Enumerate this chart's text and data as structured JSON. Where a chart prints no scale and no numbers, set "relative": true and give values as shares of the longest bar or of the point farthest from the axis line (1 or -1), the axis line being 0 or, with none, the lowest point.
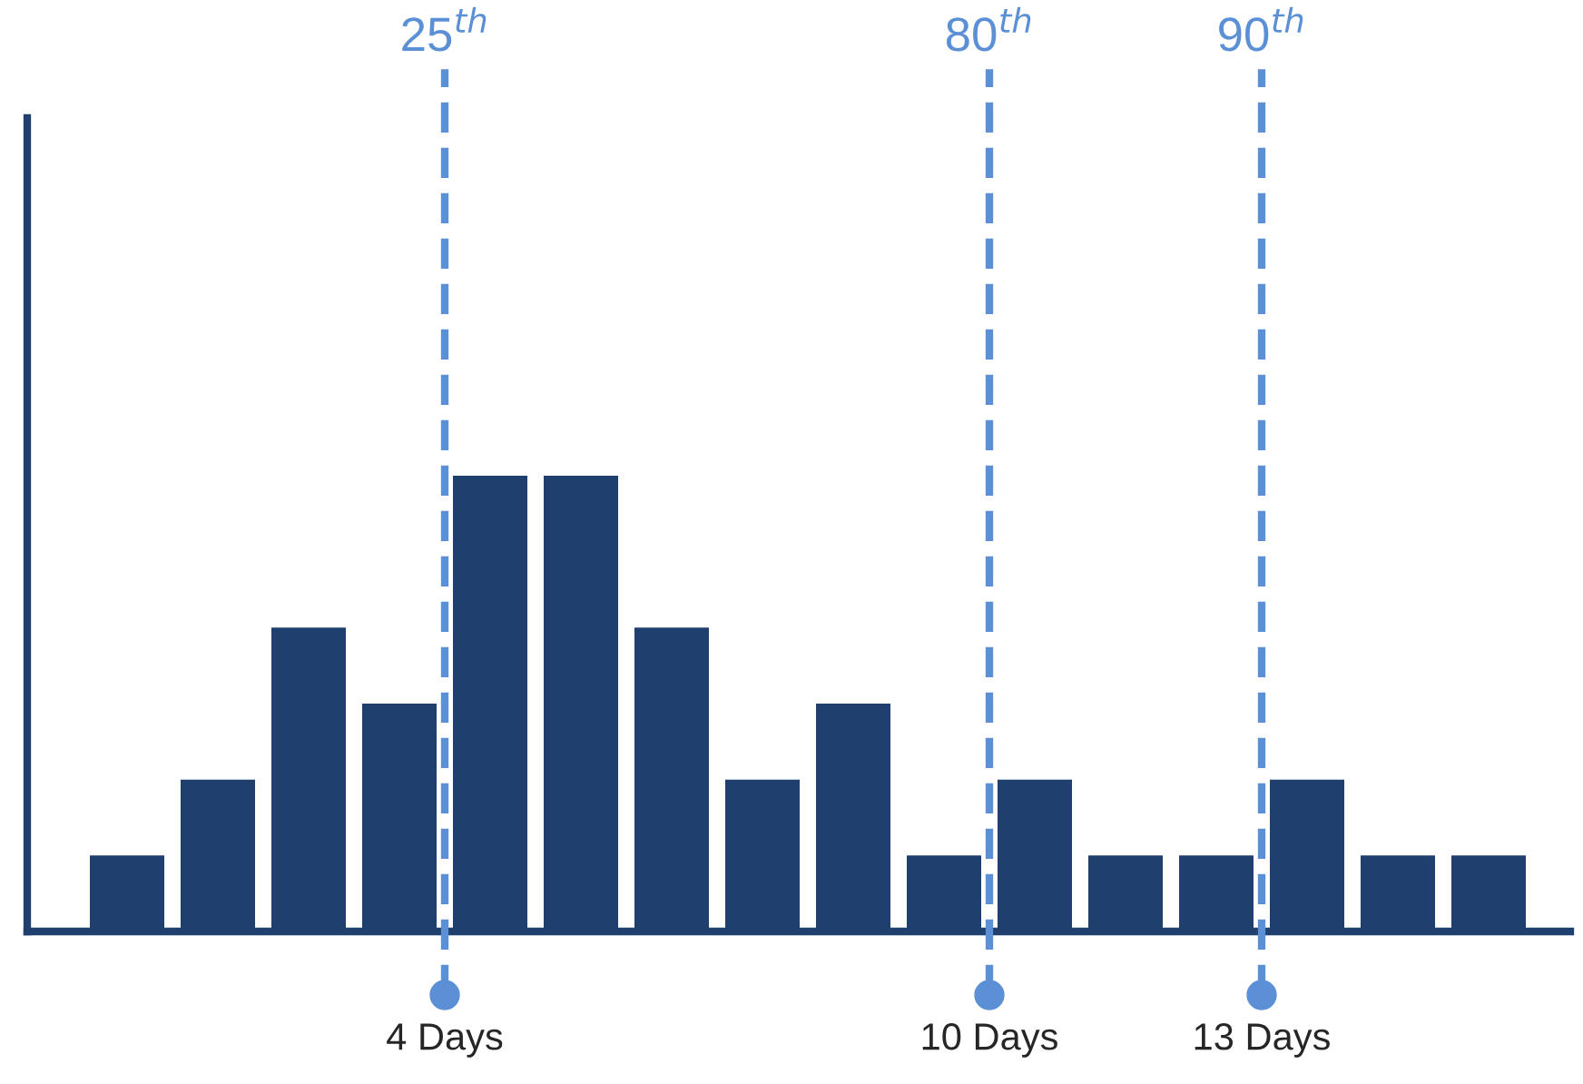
{
  "chart_data": {
    "type": "bar",
    "relative": true,
    "color": "#1f3f6e",
    "x": [
      0.5,
      1.5,
      2.5,
      3.5,
      4.5,
      5.5,
      6.5,
      7.5,
      8.5,
      9.5,
      10.5,
      11.5,
      12.5,
      13.5,
      14.5,
      15.5
    ],
    "values": [
      0.1667,
      0.3333,
      0.6667,
      0.5,
      1,
      1,
      0.6667,
      0.3333,
      0.5,
      0.1667,
      0.3333,
      0.1667,
      0.1667,
      0.3333,
      0.1667,
      0.1667
    ],
    "xlim": [
      -0.6,
      16.4
    ],
    "xticks": [
      {
        "value": 4,
        "label": "4 Days"
      },
      {
        "value": 10,
        "label": "10 Days"
      },
      {
        "value": 13,
        "label": "13 Days"
      }
    ],
    "ref_lines": [
      {
        "axis": "x",
        "value": 4,
        "label": "25$^{th}$",
        "color": "#5b8fd6",
        "line_style": "dashed"
      },
      {
        "axis": "x",
        "value": 10,
        "label": "80$^{th}$",
        "color": "#5b8fd6",
        "line_style": "dashed"
      },
      {
        "axis": "x",
        "value": 13,
        "label": "90$^{th}$",
        "color": "#5b8fd6",
        "line_style": "dashed"
      }
    ],
    "grid": false,
    "legend": false
  }
}
